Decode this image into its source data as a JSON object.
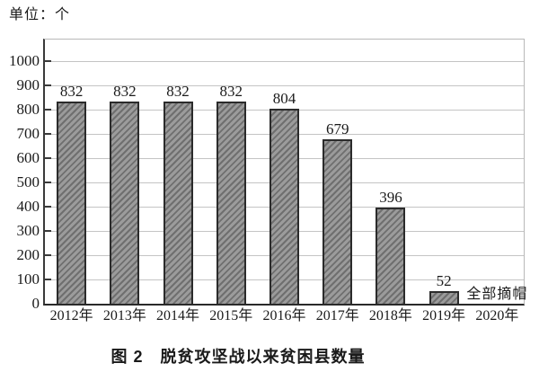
{
  "figure": {
    "unit_label": "单位：个",
    "caption": "图 2　脱贫攻坚战以来贫困县数量"
  },
  "chart_data": {
    "type": "bar",
    "title": "图 2　脱贫攻坚战以来贫困县数量",
    "unit_label": "单位：个",
    "categories": [
      "2012年",
      "2013年",
      "2014年",
      "2015年",
      "2016年",
      "2017年",
      "2018年",
      "2019年",
      "2020年"
    ],
    "values": [
      832,
      832,
      832,
      832,
      804,
      679,
      396,
      52,
      null
    ],
    "bar_labels": [
      "832",
      "832",
      "832",
      "832",
      "804",
      "679",
      "396",
      "52",
      ""
    ],
    "annotations": [
      {
        "category": "2020年",
        "text": "全部摘帽"
      }
    ],
    "ylim": [
      0,
      1000
    ],
    "yticks": [
      0,
      100,
      200,
      300,
      400,
      500,
      600,
      700,
      800,
      900,
      1000
    ],
    "grid": true,
    "legend": false,
    "bar_style": "diagonal-hatch"
  },
  "colors": {
    "background": "#ffffff",
    "text": "#1a1a1a",
    "bar_fill": "#9b9b9b",
    "bar_hatch": "#6f6f6f",
    "bar_border": "#2b2b2b",
    "gridline": "#c4c4c4",
    "axis": "#3a3a3a",
    "frame": "#b8b8b8"
  }
}
